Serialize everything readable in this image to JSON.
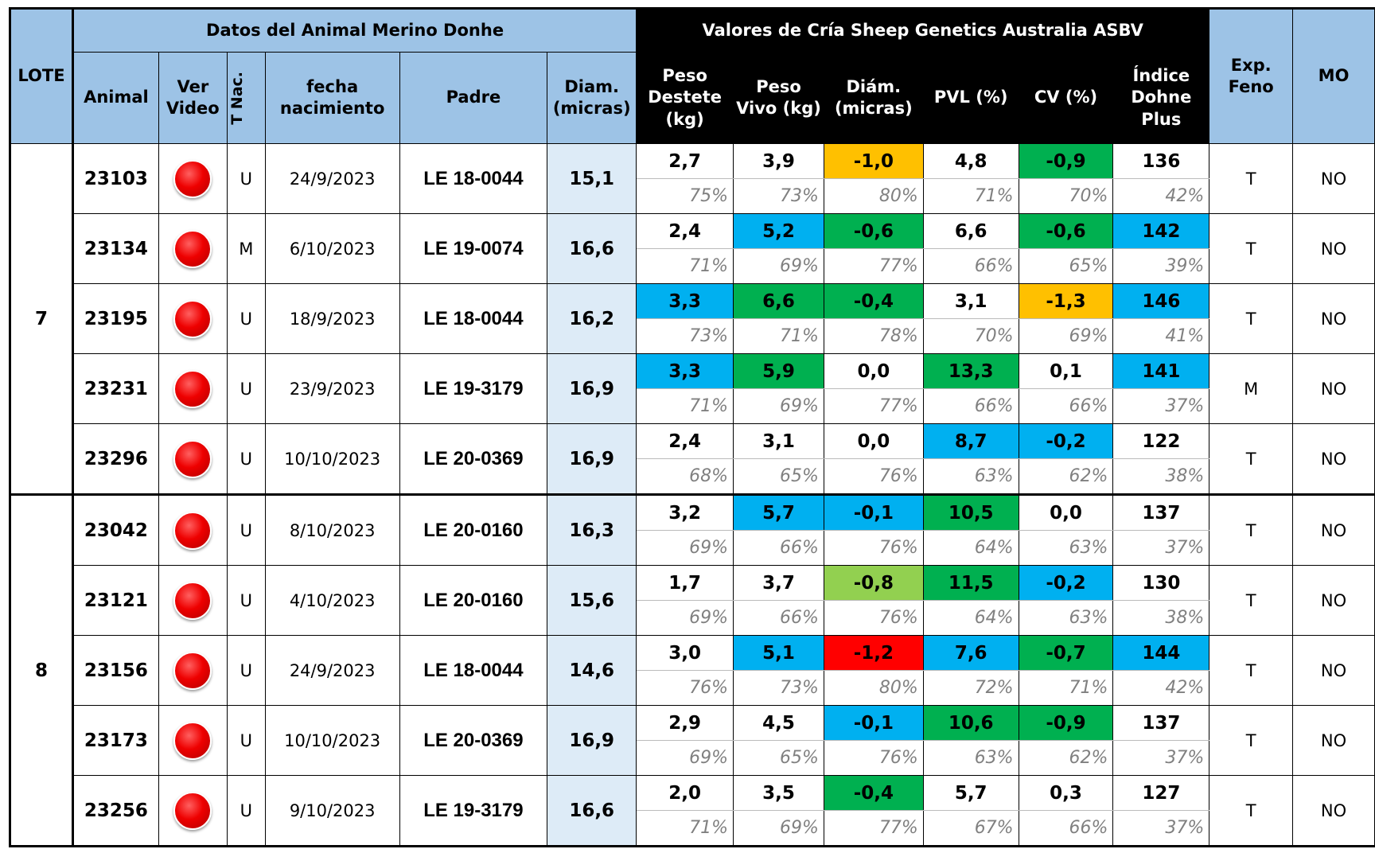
{
  "header": {
    "lote": "LOTE",
    "group_animal": "Datos del Animal Merino Donhe",
    "group_asbv": "Valores de Cría Sheep Genetics Australia ASBV",
    "exp_feno": "Exp. Feno",
    "mo": "MO",
    "columns": [
      "Animal",
      "Ver Video",
      "T Nac.",
      "fecha nacimiento",
      "Padre",
      "Diam. (micras)"
    ],
    "traits": [
      "Peso Destete (kg)",
      "Peso Vivo (kg)",
      "Diám. (micras)",
      "PVL (%)",
      "CV (%)",
      "Índice Dohne Plus"
    ]
  },
  "lots": [
    {
      "lote": "7",
      "rows": [
        {
          "animal": "23103",
          "tnac": "U",
          "fecha": "24/9/2023",
          "padre": "LE 18-0044",
          "diam": "15,1",
          "exp": "T",
          "mo": "NO",
          "asbv": [
            {
              "value": "2,7",
              "acc": "75%",
              "color": null
            },
            {
              "value": "3,9",
              "acc": "73%",
              "color": null
            },
            {
              "value": "-1,0",
              "acc": "80%",
              "color": "#ffc000"
            },
            {
              "value": "4,8",
              "acc": "71%",
              "color": null
            },
            {
              "value": "-0,9",
              "acc": "70%",
              "color": "#00b050"
            },
            {
              "value": "136",
              "acc": "42%",
              "color": null
            }
          ]
        },
        {
          "animal": "23134",
          "tnac": "M",
          "fecha": "6/10/2023",
          "padre": "LE 19-0074",
          "diam": "16,6",
          "exp": "T",
          "mo": "NO",
          "asbv": [
            {
              "value": "2,4",
              "acc": "71%",
              "color": null
            },
            {
              "value": "5,2",
              "acc": "69%",
              "color": "#00b0f0"
            },
            {
              "value": "-0,6",
              "acc": "77%",
              "color": "#00b050"
            },
            {
              "value": "6,6",
              "acc": "66%",
              "color": null
            },
            {
              "value": "-0,6",
              "acc": "65%",
              "color": "#00b050"
            },
            {
              "value": "142",
              "acc": "39%",
              "color": "#00b0f0"
            }
          ]
        },
        {
          "animal": "23195",
          "tnac": "U",
          "fecha": "18/9/2023",
          "padre": "LE 18-0044",
          "diam": "16,2",
          "exp": "T",
          "mo": "NO",
          "asbv": [
            {
              "value": "3,3",
              "acc": "73%",
              "color": "#00b0f0"
            },
            {
              "value": "6,6",
              "acc": "71%",
              "color": "#00b050"
            },
            {
              "value": "-0,4",
              "acc": "78%",
              "color": "#00b050"
            },
            {
              "value": "3,1",
              "acc": "70%",
              "color": null
            },
            {
              "value": "-1,3",
              "acc": "69%",
              "color": "#ffc000"
            },
            {
              "value": "146",
              "acc": "41%",
              "color": "#00b0f0"
            }
          ]
        },
        {
          "animal": "23231",
          "tnac": "U",
          "fecha": "23/9/2023",
          "padre": "LE 19-3179",
          "diam": "16,9",
          "exp": "M",
          "mo": "NO",
          "asbv": [
            {
              "value": "3,3",
              "acc": "71%",
              "color": "#00b0f0"
            },
            {
              "value": "5,9",
              "acc": "69%",
              "color": "#00b050"
            },
            {
              "value": "0,0",
              "acc": "77%",
              "color": null
            },
            {
              "value": "13,3",
              "acc": "66%",
              "color": "#00b050"
            },
            {
              "value": "0,1",
              "acc": "66%",
              "color": null
            },
            {
              "value": "141",
              "acc": "37%",
              "color": "#00b0f0"
            }
          ]
        },
        {
          "animal": "23296",
          "tnac": "U",
          "fecha": "10/10/2023",
          "padre": "LE 20-0369",
          "diam": "16,9",
          "exp": "T",
          "mo": "NO",
          "asbv": [
            {
              "value": "2,4",
              "acc": "68%",
              "color": null
            },
            {
              "value": "3,1",
              "acc": "65%",
              "color": null
            },
            {
              "value": "0,0",
              "acc": "76%",
              "color": null
            },
            {
              "value": "8,7",
              "acc": "63%",
              "color": "#00b0f0"
            },
            {
              "value": "-0,2",
              "acc": "62%",
              "color": "#00b0f0"
            },
            {
              "value": "122",
              "acc": "38%",
              "color": null
            }
          ]
        }
      ]
    },
    {
      "lote": "8",
      "rows": [
        {
          "animal": "23042",
          "tnac": "U",
          "fecha": "8/10/2023",
          "padre": "LE 20-0160",
          "diam": "16,3",
          "exp": "T",
          "mo": "NO",
          "asbv": [
            {
              "value": "3,2",
              "acc": "69%",
              "color": null
            },
            {
              "value": "5,7",
              "acc": "66%",
              "color": "#00b0f0"
            },
            {
              "value": "-0,1",
              "acc": "76%",
              "color": "#00b0f0"
            },
            {
              "value": "10,5",
              "acc": "64%",
              "color": "#00b050"
            },
            {
              "value": "0,0",
              "acc": "63%",
              "color": null
            },
            {
              "value": "137",
              "acc": "37%",
              "color": null
            }
          ]
        },
        {
          "animal": "23121",
          "tnac": "U",
          "fecha": "4/10/2023",
          "padre": "LE 20-0160",
          "diam": "15,6",
          "exp": "T",
          "mo": "NO",
          "asbv": [
            {
              "value": "1,7",
              "acc": "69%",
              "color": null
            },
            {
              "value": "3,7",
              "acc": "66%",
              "color": null
            },
            {
              "value": "-0,8",
              "acc": "76%",
              "color": "#92d050"
            },
            {
              "value": "11,5",
              "acc": "64%",
              "color": "#00b050"
            },
            {
              "value": "-0,2",
              "acc": "63%",
              "color": "#00b0f0"
            },
            {
              "value": "130",
              "acc": "38%",
              "color": null
            }
          ]
        },
        {
          "animal": "23156",
          "tnac": "U",
          "fecha": "24/9/2023",
          "padre": "LE 18-0044",
          "diam": "14,6",
          "exp": "T",
          "mo": "NO",
          "asbv": [
            {
              "value": "3,0",
              "acc": "76%",
              "color": null
            },
            {
              "value": "5,1",
              "acc": "73%",
              "color": "#00b0f0"
            },
            {
              "value": "-1,2",
              "acc": "80%",
              "color": "#ff0000"
            },
            {
              "value": "7,6",
              "acc": "72%",
              "color": "#00b0f0"
            },
            {
              "value": "-0,7",
              "acc": "71%",
              "color": "#00b050"
            },
            {
              "value": "144",
              "acc": "42%",
              "color": "#00b0f0"
            }
          ]
        },
        {
          "animal": "23173",
          "tnac": "U",
          "fecha": "10/10/2023",
          "padre": "LE 20-0369",
          "diam": "16,9",
          "exp": "T",
          "mo": "NO",
          "asbv": [
            {
              "value": "2,9",
              "acc": "69%",
              "color": null
            },
            {
              "value": "4,5",
              "acc": "65%",
              "color": null
            },
            {
              "value": "-0,1",
              "acc": "76%",
              "color": "#00b0f0"
            },
            {
              "value": "10,6",
              "acc": "63%",
              "color": "#00b050"
            },
            {
              "value": "-0,9",
              "acc": "62%",
              "color": "#00b050"
            },
            {
              "value": "137",
              "acc": "37%",
              "color": null
            }
          ]
        },
        {
          "animal": "23256",
          "tnac": "U",
          "fecha": "9/10/2023",
          "padre": "LE 19-3179",
          "diam": "16,6",
          "exp": "T",
          "mo": "NO",
          "asbv": [
            {
              "value": "2,0",
              "acc": "71%",
              "color": null
            },
            {
              "value": "3,5",
              "acc": "69%",
              "color": null
            },
            {
              "value": "-0,4",
              "acc": "77%",
              "color": "#00b050"
            },
            {
              "value": "5,7",
              "acc": "67%",
              "color": null
            },
            {
              "value": "0,3",
              "acc": "66%",
              "color": null
            },
            {
              "value": "127",
              "acc": "37%",
              "color": null
            }
          ]
        }
      ]
    }
  ]
}
